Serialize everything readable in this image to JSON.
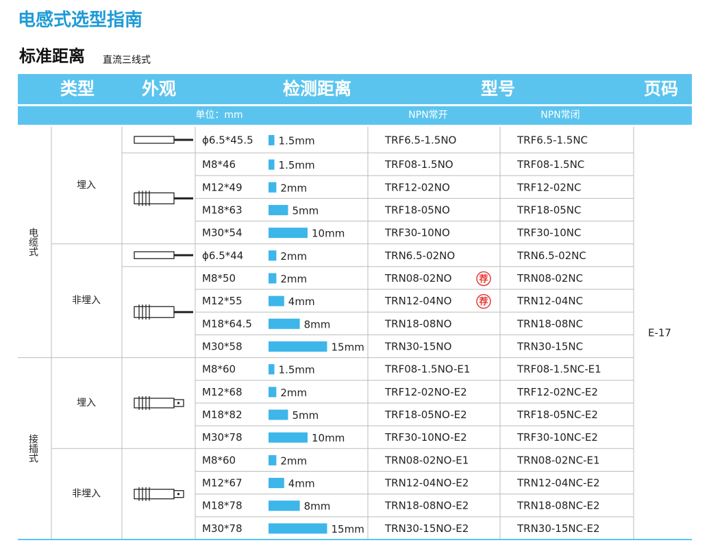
{
  "header": {
    "title": "电感式选型指南",
    "subtitle": "标准距离",
    "subtitle_note": "直流三线式"
  },
  "table": {
    "columns": [
      "类型",
      "外观",
      "检测距离",
      "型号",
      "页码"
    ],
    "subheader": {
      "unit": "单位：mm",
      "no": "NPN常开",
      "nc": "NPN常闭"
    },
    "page": "E-17",
    "groups": [
      {
        "type": "电缆式",
        "subgroups": [
          {
            "mount": "埋入",
            "rows": [
              {
                "size": "ϕ6.5*45.5",
                "distance": "1.5mm",
                "no": "TRF6.5-1.5NO",
                "nc": "TRF6.5-1.5NC"
              },
              {
                "size": "M8*46",
                "distance": "1.5mm",
                "no": "TRF08-1.5NO",
                "nc": "TRF08-1.5NC"
              },
              {
                "size": "M12*49",
                "distance": "2mm",
                "no": "TRF12-02NO",
                "nc": "TRF12-02NC"
              },
              {
                "size": "M18*63",
                "distance": "5mm",
                "no": "TRF18-05NO",
                "nc": "TRF18-05NC"
              },
              {
                "size": "M30*54",
                "distance": "10mm",
                "no": "TRF30-10NO",
                "nc": "TRF30-10NC"
              }
            ]
          },
          {
            "mount": "非埋入",
            "rows": [
              {
                "size": "ϕ6.5*44",
                "distance": "2mm",
                "no": "TRN6.5-02NO",
                "nc": "TRN6.5-02NC"
              },
              {
                "size": "M8*50",
                "distance": "2mm",
                "no": "TRN08-02NO",
                "badge": "荐",
                "nc": "TRN08-02NC"
              },
              {
                "size": "M12*55",
                "distance": "4mm",
                "no": "TRN12-04NO",
                "badge": "荐",
                "nc": "TRN12-04NC"
              },
              {
                "size": "M18*64.5",
                "distance": "8mm",
                "no": "TRN18-08NO",
                "nc": "TRN18-08NC"
              },
              {
                "size": "M30*58",
                "distance": "15mm",
                "no": "TRN30-15NO",
                "nc": "TRN30-15NC"
              }
            ]
          }
        ]
      },
      {
        "type": "接插式",
        "subgroups": [
          {
            "mount": "埋入",
            "rows": [
              {
                "size": "M8*60",
                "distance": "1.5mm",
                "no": "TRF08-1.5NO-E1",
                "nc": "TRF08-1.5NC-E1"
              },
              {
                "size": "M12*68",
                "distance": "2mm",
                "no": "TRF12-02NO-E2",
                "nc": "TRF12-02NC-E2"
              },
              {
                "size": "M18*82",
                "distance": "5mm",
                "no": "TRF18-05NO-E2",
                "nc": "TRF18-05NC-E2"
              },
              {
                "size": "M30*78",
                "distance": "10mm",
                "no": "TRF30-10NO-E2",
                "nc": "TRF30-10NC-E2"
              }
            ]
          },
          {
            "mount": "非埋入",
            "rows": [
              {
                "size": "M8*60",
                "distance": "2mm",
                "no": "TRN08-02NO-E1",
                "nc": "TRN08-02NC-E1"
              },
              {
                "size": "M12*67",
                "distance": "4mm",
                "no": "TRN12-04NO-E2",
                "nc": "TRN12-04NC-E2"
              },
              {
                "size": "M18*78",
                "distance": "8mm",
                "no": "TRN18-08NO-E2",
                "nc": "TRN18-08NC-E2"
              },
              {
                "size": "M30*78",
                "distance": "15mm",
                "no": "TRN30-15NO-E2",
                "nc": "TRN30-15NC-E2"
              }
            ]
          }
        ]
      }
    ]
  }
}
